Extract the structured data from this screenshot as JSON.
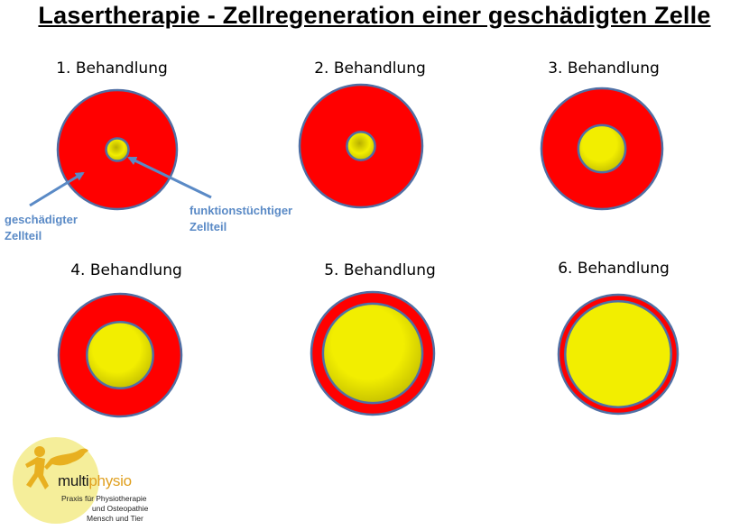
{
  "title": "Lasertherapie - Zellregeneration einer geschädigten Zelle",
  "steps": [
    {
      "label": "1. Behandlung",
      "healthy_fraction": 0.19
    },
    {
      "label": "2. Behandlung",
      "healthy_fraction": 0.23
    },
    {
      "label": "3. Behandlung",
      "healthy_fraction": 0.39
    },
    {
      "label": "4. Behandlung",
      "healthy_fraction": 0.54
    },
    {
      "label": "5. Behandlung",
      "healthy_fraction": 0.81
    },
    {
      "label": "6. Behandlung",
      "healthy_fraction": 0.89
    }
  ],
  "annotations": {
    "damaged": {
      "line1": "geschädigter",
      "line2": "Zellteil"
    },
    "healthy": {
      "line1": "funktionstüchtiger",
      "line2": "Zellteil"
    }
  },
  "logo": {
    "brand_part1": "multi",
    "brand_part2": "physio",
    "tagline_line1": "Praxis für Physiotherapie",
    "tagline_line2": "und Osteopathie",
    "tagline_line3": "Mensch und Tier"
  },
  "colors": {
    "damaged": "#ff0000",
    "healthy": "#f2ee00",
    "outline": "#4f6fa5",
    "annotation": "#5a8ac6",
    "logo_circle": "#f5ee9a",
    "logo_figure": "#e8b020"
  }
}
